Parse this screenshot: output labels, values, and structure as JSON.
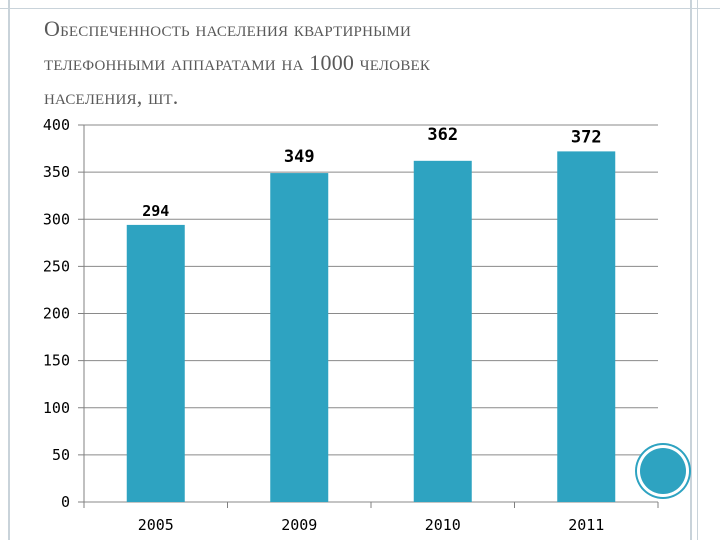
{
  "title_lines": [
    "Обеспеченность населения квартирными",
    "телефонными аппаратами на 1000 человек",
    "населения, шт."
  ],
  "colors": {
    "bar": "#2ea3c1",
    "grid": "#8a8a8a",
    "axis": "#808080",
    "text": "#000000",
    "title": "#595959"
  },
  "chart_data": {
    "type": "bar",
    "title": "Обеспеченность населения квартирными телефонными аппаратами на 1000 человек населения, шт.",
    "xlabel": "",
    "ylabel": "",
    "categories": [
      "2005",
      "2009",
      "2010",
      "2011"
    ],
    "values": [
      294,
      349,
      362,
      372
    ],
    "data_labels": [
      "294",
      "349",
      "362",
      "372"
    ],
    "ylim": [
      0,
      400
    ],
    "yticks": [
      0,
      50,
      100,
      150,
      200,
      250,
      300,
      350,
      400
    ],
    "grid": true,
    "legend": "none"
  }
}
